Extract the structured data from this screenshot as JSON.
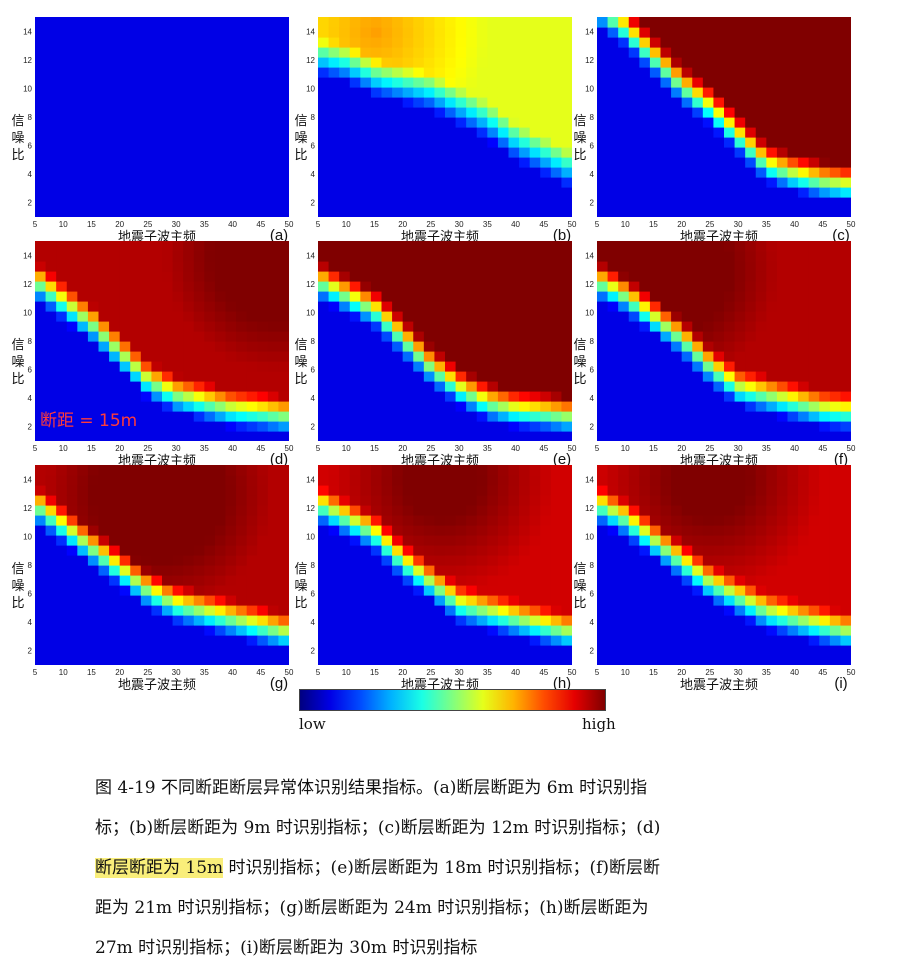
{
  "chart_data": {
    "type": "heatmap",
    "xlabel": "地震子波主频",
    "ylabel": "信噪比",
    "x_ticks": [
      5,
      10,
      15,
      20,
      25,
      30,
      35,
      40,
      45,
      50
    ],
    "y_ticks": [
      2,
      4,
      6,
      8,
      10,
      12,
      14
    ],
    "xlim": [
      5,
      50
    ],
    "ylim": [
      1,
      15
    ],
    "colormap": "jet",
    "colorbar_low": "low",
    "colorbar_high": "high",
    "panels": [
      {
        "label": "(a)",
        "fault_distance_m": 6,
        "xs": [
          5,
          10,
          15,
          20,
          25,
          30,
          35,
          40,
          45,
          50
        ],
        "boundary_snr": [
          16,
          16,
          16,
          16,
          16,
          16,
          16,
          16,
          16,
          16
        ],
        "vmax": 0.0,
        "peak_x": 30,
        "peak_y": 13
      },
      {
        "label": "(b)",
        "fault_distance_m": 9,
        "xs": [
          5,
          10,
          15,
          20,
          25,
          30,
          35,
          40,
          45,
          50
        ],
        "boundary_snr": [
          11,
          10.5,
          9.5,
          9,
          8.5,
          7.5,
          6.5,
          5,
          4,
          3
        ],
        "vmax": 0.6,
        "peak_x": 15,
        "peak_y": 14
      },
      {
        "label": "(c)",
        "fault_distance_m": 12,
        "xs": [
          5,
          10,
          15,
          20,
          25,
          30,
          35,
          40,
          45,
          50
        ],
        "boundary_snr": [
          14.5,
          13,
          11,
          9,
          7.5,
          5.5,
          3.5,
          2.8,
          2.3,
          2
        ],
        "vmax": 1.0,
        "peak_x": 47,
        "peak_y": 14
      },
      {
        "label": "(d)",
        "fault_distance_m": 15,
        "xs": [
          5,
          10,
          15,
          20,
          25,
          30,
          35,
          40,
          45,
          50
        ],
        "boundary_snr": [
          11,
          9.5,
          8,
          6,
          4,
          3,
          2.5,
          2,
          1.8,
          1.5
        ],
        "vmax": 0.95,
        "peak_x": 48,
        "peak_y": 14
      },
      {
        "label": "(e)",
        "fault_distance_m": 18,
        "xs": [
          5,
          10,
          15,
          20,
          25,
          30,
          35,
          40,
          45,
          50
        ],
        "boundary_snr": [
          11,
          10,
          9,
          7,
          5,
          3.5,
          2.5,
          2,
          1.8,
          1.5
        ],
        "vmax": 1.0,
        "peak_x": 47,
        "peak_y": 12
      },
      {
        "label": "(f)",
        "fault_distance_m": 21,
        "xs": [
          5,
          10,
          15,
          20,
          25,
          30,
          35,
          40,
          45,
          50
        ],
        "boundary_snr": [
          11,
          10,
          8.5,
          7,
          5,
          3.5,
          3,
          2.5,
          2,
          1.8
        ],
        "vmax": 0.95,
        "peak_x": 17,
        "peak_y": 13
      },
      {
        "label": "(g)",
        "fault_distance_m": 24,
        "xs": [
          5,
          10,
          15,
          20,
          25,
          30,
          35,
          40,
          45,
          50
        ],
        "boundary_snr": [
          11,
          9.5,
          8,
          6.5,
          5,
          4,
          3.5,
          3,
          2.5,
          2
        ],
        "vmax": 0.95,
        "peak_x": 27,
        "peak_y": 13
      },
      {
        "label": "(h)",
        "fault_distance_m": 27,
        "xs": [
          5,
          10,
          15,
          20,
          25,
          30,
          35,
          40,
          45,
          50
        ],
        "boundary_snr": [
          11,
          10,
          9,
          7,
          5.5,
          4,
          3.5,
          3,
          2.5,
          2
        ],
        "vmax": 0.92,
        "peak_x": 27,
        "peak_y": 14
      },
      {
        "label": "(i)",
        "fault_distance_m": 30,
        "xs": [
          5,
          10,
          15,
          20,
          25,
          30,
          35,
          40,
          45,
          50
        ],
        "boundary_snr": [
          11,
          10,
          8.5,
          7,
          5.5,
          4.5,
          3.5,
          3,
          2.5,
          2
        ],
        "vmax": 0.92,
        "peak_x": 25,
        "peak_y": 14
      }
    ]
  },
  "annotation": "断距 = 15m",
  "caption": {
    "line1": "图 4-19 不同断距断层异常体识别结果指标。(a)断层断距为 6m 时识别指",
    "line2": "标；(b)断层断距为 9m 时识别指标；(c)断层断距为 12m 时识别指标；(d)",
    "line3_highlight": "断层断距为 15m",
    "line3_rest": " 时识别指标；(e)断层断距为 18m 时识别指标；(f)断层断",
    "line4": "距为 21m 时识别指标；(g)断层断距为 24m 时识别指标；(h)断层断距为",
    "line5": "27m 时识别指标；(i)断层断距为 30m 时识别指标"
  }
}
